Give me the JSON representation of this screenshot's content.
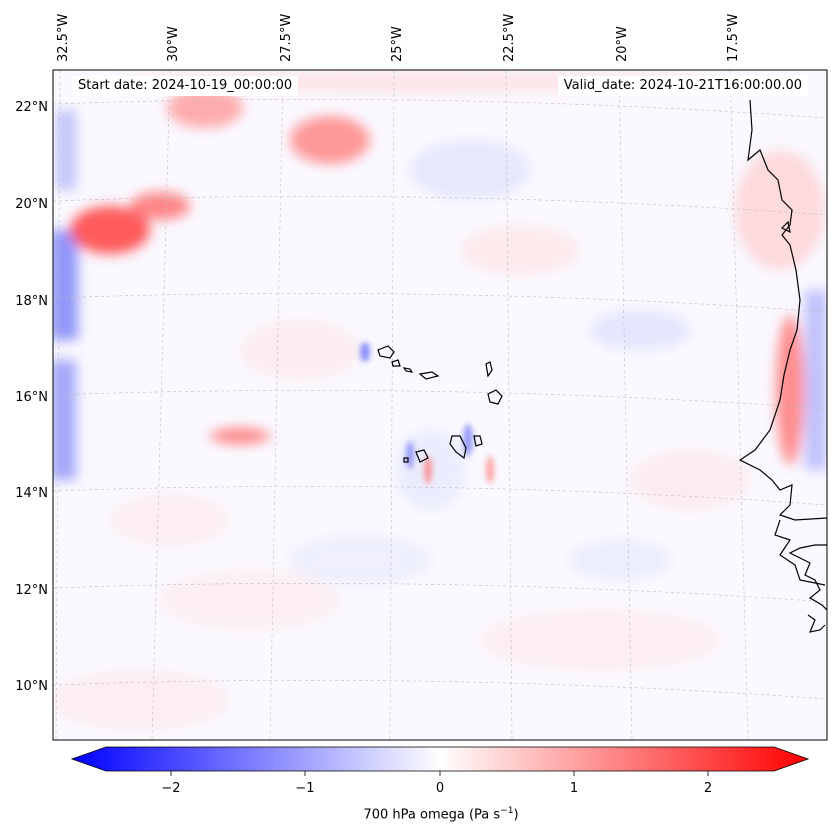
{
  "header": {
    "start_date": "Start date: 2024-10-19_00:00:00",
    "valid_date": "Valid_date: 2024-10-21T16:00:00.00"
  },
  "map": {
    "lon_labels": [
      "32.5°W",
      "30°W",
      "27.5°W",
      "25°W",
      "22.5°W",
      "20°W",
      "17.5°W"
    ],
    "lat_labels": [
      "22°N",
      "20°N",
      "18°N",
      "16°N",
      "14°N",
      "12°N",
      "10°N"
    ],
    "colors": {
      "negative": "#0000ff",
      "zero": "#ffffff",
      "positive": "#ff0000",
      "coast": "#000000",
      "grid": "#bdbdbd"
    }
  },
  "colorbar": {
    "ticks": [
      "−2",
      "−1",
      "0",
      "1",
      "2"
    ],
    "label_prefix": "700 hPa omega (Pa s",
    "label_exp": "−1",
    "label_suffix": ")",
    "range": [
      -2.75,
      2.75
    ]
  }
}
